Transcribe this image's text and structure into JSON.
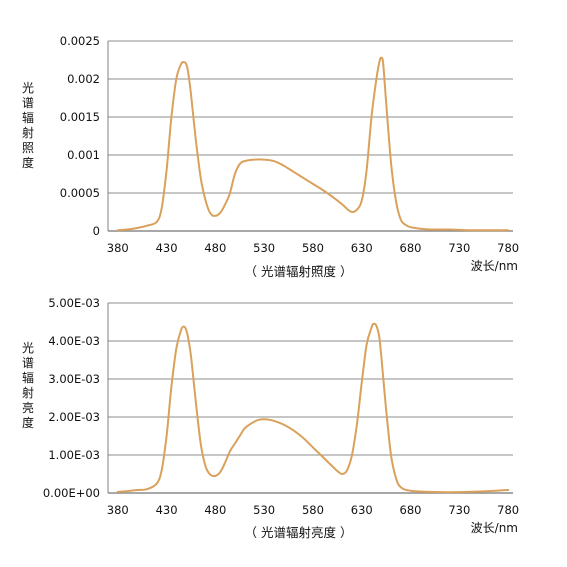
{
  "colors": {
    "curve": "#D9A15C",
    "grid": "#8C8C8C",
    "text": "#111111",
    "background": "#FFFFFF"
  },
  "chart_data": [
    {
      "type": "line",
      "caption": "（ 光谱辐射照度 ）",
      "ylabel": "光谱辐射照度",
      "xlabel": "波长/nm",
      "xlim": [
        370,
        785
      ],
      "ylim": [
        0,
        0.0025
      ],
      "grid": true,
      "x_ticks": [
        380,
        430,
        480,
        530,
        580,
        630,
        680,
        730,
        780
      ],
      "x_tick_labels": [
        "380",
        "430",
        "480",
        "530",
        "580",
        "630",
        "680",
        "730",
        "780"
      ],
      "y_ticks": [
        0,
        0.0005,
        0.001,
        0.0015,
        0.002,
        0.0025
      ],
      "y_tick_labels": [
        "0",
        "0.0005",
        "0.001",
        "0.0015",
        "0.002",
        "0.0025"
      ],
      "series": [
        {
          "x": [
            380,
            390,
            400,
            410,
            420,
            425,
            430,
            435,
            440,
            445,
            448,
            450,
            452,
            455,
            460,
            465,
            470,
            475,
            480,
            485,
            490,
            495,
            500,
            505,
            510,
            520,
            530,
            540,
            550,
            560,
            570,
            580,
            590,
            600,
            610,
            615,
            620,
            625,
            630,
            635,
            640,
            645,
            648,
            650,
            652,
            655,
            660,
            665,
            670,
            675,
            680,
            690,
            700,
            720,
            740,
            760,
            780
          ],
          "y": [
            1e-05,
            2e-05,
            4e-05,
            7e-05,
            0.00012,
            0.0003,
            0.0008,
            0.0015,
            0.002,
            0.0022,
            0.00222,
            0.0022,
            0.0021,
            0.0018,
            0.0012,
            0.0007,
            0.0004,
            0.00023,
            0.0002,
            0.00024,
            0.00035,
            0.0005,
            0.00075,
            0.00088,
            0.00092,
            0.00094,
            0.00094,
            0.00092,
            0.00086,
            0.00078,
            0.0007,
            0.00062,
            0.00054,
            0.00045,
            0.00035,
            0.00029,
            0.00025,
            0.00028,
            0.0004,
            0.0008,
            0.0015,
            0.002,
            0.00222,
            0.00228,
            0.0022,
            0.0017,
            0.0009,
            0.0004,
            0.00015,
            8e-05,
            5e-05,
            3e-05,
            2e-05,
            2e-05,
            1e-05,
            1e-05,
            1e-05
          ]
        }
      ]
    },
    {
      "type": "line",
      "caption": "（ 光谱辐射亮度 ）",
      "ylabel": "光谱辐射亮度",
      "xlabel": "波长/nm",
      "xlim": [
        370,
        785
      ],
      "ylim": [
        0,
        0.005
      ],
      "grid": true,
      "x_ticks": [
        380,
        430,
        480,
        530,
        580,
        630,
        680,
        730,
        780
      ],
      "x_tick_labels": [
        "380",
        "430",
        "480",
        "530",
        "580",
        "630",
        "680",
        "730",
        "780"
      ],
      "y_ticks": [
        0,
        0.001,
        0.002,
        0.003,
        0.004,
        0.005
      ],
      "y_tick_labels": [
        "0.00E+00",
        "1.00E-03",
        "2.00E-03",
        "3.00E-03",
        "4.00E-03",
        "5.00E-03"
      ],
      "series": [
        {
          "x": [
            380,
            390,
            400,
            410,
            420,
            425,
            430,
            435,
            440,
            445,
            448,
            450,
            452,
            455,
            460,
            465,
            470,
            475,
            480,
            485,
            490,
            495,
            500,
            505,
            510,
            515,
            520,
            525,
            530,
            535,
            540,
            550,
            560,
            570,
            580,
            590,
            600,
            605,
            610,
            615,
            620,
            625,
            630,
            635,
            640,
            642,
            645,
            648,
            650,
            655,
            660,
            665,
            670,
            680,
            700,
            720,
            740,
            760,
            780
          ],
          "y": [
            3e-05,
            5e-05,
            8e-05,
            0.0001,
            0.00025,
            0.0006,
            0.0015,
            0.0028,
            0.0038,
            0.0043,
            0.00438,
            0.0043,
            0.0041,
            0.0036,
            0.0024,
            0.0013,
            0.0007,
            0.00048,
            0.00045,
            0.00055,
            0.0008,
            0.0011,
            0.0013,
            0.0015,
            0.0017,
            0.0018,
            0.00188,
            0.00193,
            0.00194,
            0.00193,
            0.0019,
            0.0018,
            0.00165,
            0.00145,
            0.0012,
            0.00095,
            0.0007,
            0.00058,
            0.0005,
            0.0006,
            0.001,
            0.0018,
            0.0029,
            0.0039,
            0.00435,
            0.00445,
            0.0044,
            0.0041,
            0.0036,
            0.0022,
            0.001,
            0.0004,
            0.00015,
            6e-05,
            3e-05,
            2e-05,
            3e-05,
            5e-05,
            8e-05
          ]
        }
      ]
    }
  ]
}
